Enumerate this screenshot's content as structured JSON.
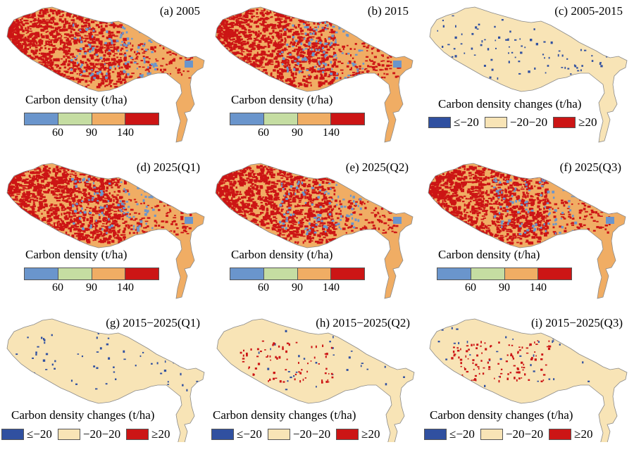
{
  "colors": {
    "density": [
      "#6a95cc",
      "#c5dda2",
      "#f0ad64",
      "#cc1515"
    ],
    "change": [
      "#3050a0",
      "#f8e4b6",
      "#cc1515"
    ],
    "mapBase": "#f0ad64",
    "mapHigh": "#cc1515",
    "mapLow": "#6a95cc",
    "changeBase": "#f8e4b6",
    "changeNeg": "#3050a0",
    "changePos": "#cc1515"
  },
  "density_legend": {
    "title": "Carbon density (t/ha)",
    "ticks": [
      "60",
      "90",
      "140"
    ]
  },
  "change_legend": {
    "title": "Carbon density changes (t/ha)",
    "labels": [
      "≤−20",
      "−20−20",
      "≥20"
    ]
  },
  "panels": [
    {
      "id": "a",
      "title": "(a) 2005",
      "kind": "density",
      "high": 0.55,
      "low": 0.08
    },
    {
      "id": "b",
      "title": "(b) 2015",
      "kind": "density",
      "high": 0.55,
      "low": 0.09
    },
    {
      "id": "c",
      "title": "(c) 2005-2015",
      "kind": "change",
      "neg": 0.03,
      "pos": 0.0
    },
    {
      "id": "d",
      "title": "(d) 2025(Q1)",
      "kind": "density",
      "high": 0.58,
      "low": 0.07
    },
    {
      "id": "e",
      "title": "(e) 2025(Q2)",
      "kind": "density",
      "high": 0.58,
      "low": 0.07
    },
    {
      "id": "f",
      "title": "(f) 2025(Q3)",
      "kind": "density",
      "high": 0.62,
      "low": 0.07
    },
    {
      "id": "g",
      "title": "(g) 2015−2025(Q1)",
      "kind": "change",
      "neg": 0.02,
      "pos": 0.0
    },
    {
      "id": "h",
      "title": "(h) 2015−2025(Q2)",
      "kind": "change",
      "neg": 0.01,
      "pos": 0.02
    },
    {
      "id": "i",
      "title": "(i) 2015−2025(Q3)",
      "kind": "change",
      "neg": 0.01,
      "pos": 0.03
    }
  ]
}
